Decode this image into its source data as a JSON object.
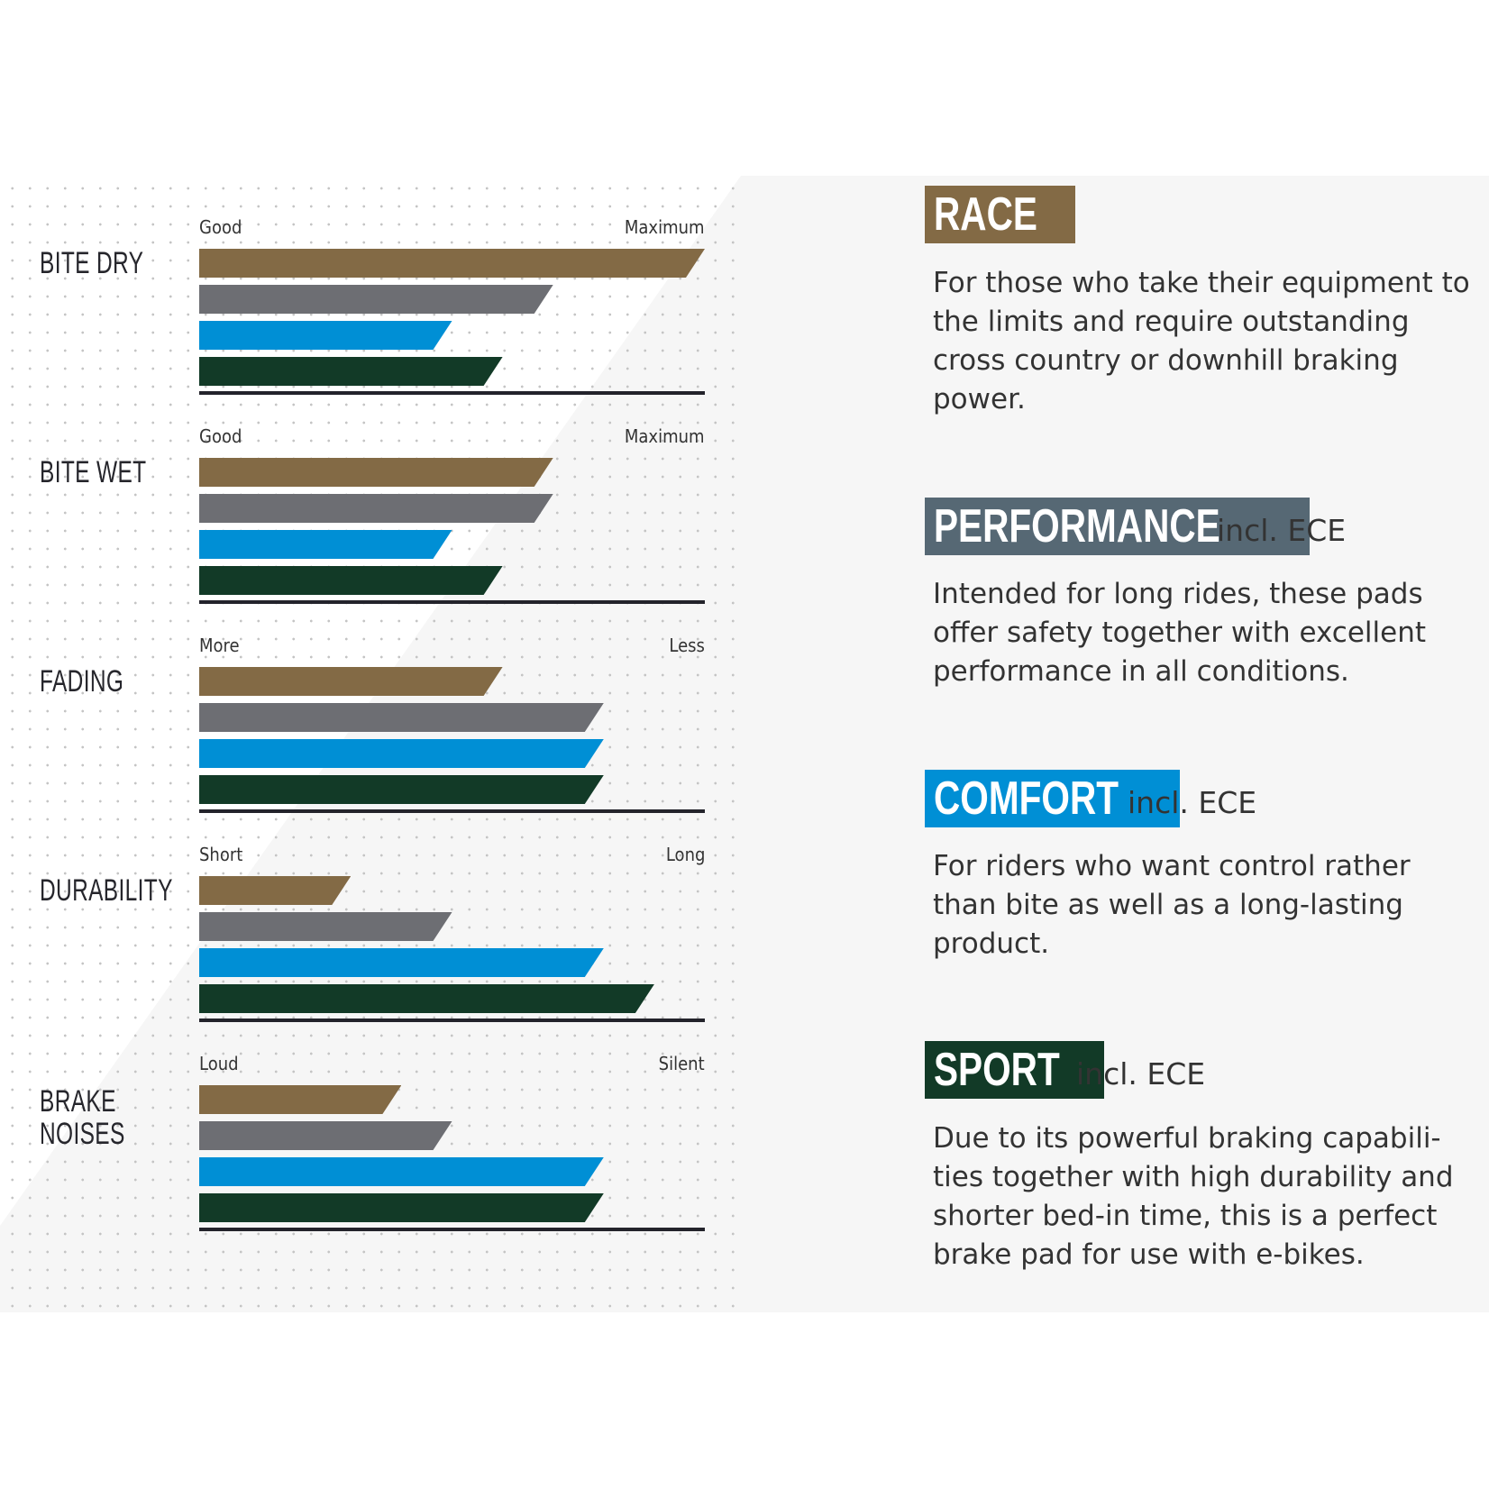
{
  "chart_data": {
    "type": "bar",
    "orientation": "horizontal",
    "series_colors": {
      "RACE": "#836a45",
      "PERFORMANCE": "#6d6e73",
      "COMFORT": "#008fd5",
      "SPORT": "#123a27"
    },
    "xlim": [
      0,
      1
    ],
    "categories": [
      {
        "label": "BITE DRY",
        "lines": [
          "BITE DRY"
        ],
        "low": "Good",
        "high": "Maximum",
        "values": [
          1.0,
          0.7,
          0.5,
          0.6
        ]
      },
      {
        "label": "BITE WET",
        "lines": [
          "BITE WET"
        ],
        "low": "Good",
        "high": "Maximum",
        "values": [
          0.7,
          0.7,
          0.5,
          0.6
        ]
      },
      {
        "label": "FADING",
        "lines": [
          "FADING"
        ],
        "low": "More",
        "high": "Less",
        "values": [
          0.6,
          0.8,
          0.8,
          0.8
        ]
      },
      {
        "label": "DURABILITY",
        "lines": [
          "DURABILITY"
        ],
        "low": "Short",
        "high": "Long",
        "values": [
          0.3,
          0.5,
          0.8,
          0.9
        ]
      },
      {
        "label": "BRAKE NOISES",
        "lines": [
          "BRAKE",
          "NOISES"
        ],
        "low": "Loud",
        "high": "Silent",
        "values": [
          0.4,
          0.5,
          0.8,
          0.8
        ]
      }
    ],
    "series": [
      "RACE",
      "PERFORMANCE",
      "COMFORT",
      "SPORT"
    ]
  },
  "products": [
    {
      "name": "RACE",
      "badge_color": "#836a45",
      "suffix": "",
      "description": "For those who take their equipment to the limits and require outstanding cross country or downhill braking power."
    },
    {
      "name": "PERFORMANCE",
      "badge_color": "#566874",
      "suffix": "incl. ECE",
      "description": "Intended for long rides, these pads offer safety together with excellent performance in all conditions."
    },
    {
      "name": "COMFORT",
      "badge_color": "#008fd5",
      "suffix": "incl. ECE",
      "description": "For riders who want control rather than bite as well as a long-lasting product."
    },
    {
      "name": "SPORT",
      "badge_color": "#123a27",
      "suffix": "incl. ECE",
      "description": "Due to its powerful braking capabili-ties together with high durability and shorter bed-in time, this is a perfect brake pad for use with e-bikes."
    }
  ]
}
